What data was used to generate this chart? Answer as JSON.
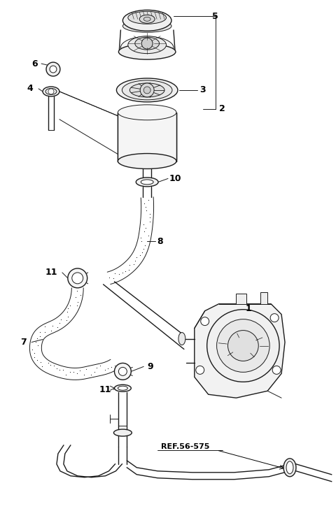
{
  "bg_color": "#ffffff",
  "lc": "#1a1a1a",
  "fig_width": 4.8,
  "fig_height": 7.31,
  "dpi": 100
}
